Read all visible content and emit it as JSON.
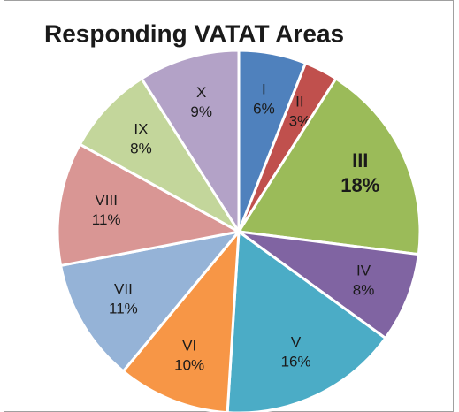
{
  "chart_data": {
    "type": "pie",
    "title": "Responding VATAT Areas",
    "categories": [
      "I",
      "II",
      "III",
      "IV",
      "V",
      "VI",
      "VII",
      "VIII",
      "IX",
      "X"
    ],
    "values": [
      6,
      3,
      18,
      8,
      16,
      10,
      11,
      11,
      8,
      9
    ],
    "value_labels": [
      "6%",
      "3%",
      "18%",
      "8%",
      "16%",
      "10%",
      "11%",
      "11%",
      "8%",
      "9%"
    ],
    "colors": [
      "#4f81bd",
      "#c0504d",
      "#9bbb59",
      "#8064a2",
      "#4bacc6",
      "#f79646",
      "#95b3d7",
      "#d99694",
      "#c3d69b",
      "#b3a2c7"
    ],
    "label_bold": [
      false,
      false,
      true,
      false,
      false,
      false,
      false,
      false,
      false,
      false
    ]
  }
}
